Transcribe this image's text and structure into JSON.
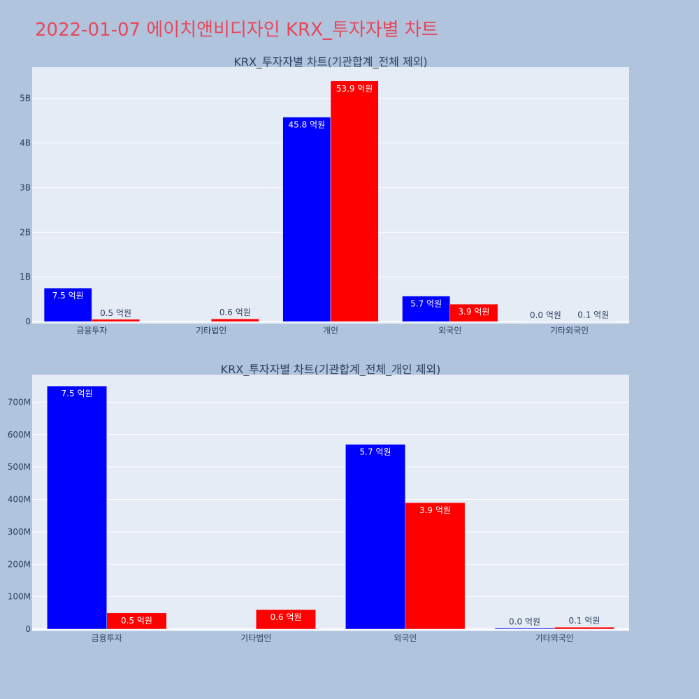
{
  "page": {
    "title": "2022-01-07 에이치앤비디자인 KRX_투자자별 차트"
  },
  "colors": {
    "background": "#b0c4de",
    "plot_bg": "#e5ecf6",
    "grid": "#ffffff",
    "title": "#e8475a",
    "axis_text": "#2a3f5f",
    "series_blue": "#0000ff",
    "series_red": "#ff0000"
  },
  "chart_data": [
    {
      "type": "bar",
      "title": "KRX_투자자별 차트(기관합계_전체 제외)",
      "categories": [
        "금융투자",
        "기타법인",
        "개인",
        "외국인",
        "기타외국인"
      ],
      "series": [
        {
          "color": "#0000ff",
          "values": [
            750000000,
            0,
            4580000000,
            570000000,
            3000000
          ],
          "labels": [
            "7.5 억원",
            "",
            "45.8 억원",
            "5.7 억원",
            "0.0 억원"
          ]
        },
        {
          "color": "#ff0000",
          "values": [
            50000000,
            60000000,
            5390000000,
            390000000,
            6000000
          ],
          "labels": [
            "0.5 억원",
            "0.6 억원",
            "53.9 억원",
            "3.9 억원",
            "0.1 억원"
          ]
        }
      ],
      "yticks": [
        0,
        1000000000,
        2000000000,
        3000000000,
        4000000000,
        5000000000
      ],
      "ytick_labels": [
        "0",
        "1B",
        "2B",
        "3B",
        "4B",
        "5B"
      ],
      "ylim": [
        0,
        5700000000
      ],
      "grid": true,
      "xlabel": "",
      "ylabel": ""
    },
    {
      "type": "bar",
      "title": "KRX_투자자별 차트(기관합계_전체_개인 제외)",
      "categories": [
        "금융투자",
        "기타법인",
        "외국인",
        "기타외국인"
      ],
      "series": [
        {
          "color": "#0000ff",
          "values": [
            750000000,
            0,
            570000000,
            3000000
          ],
          "labels": [
            "7.5 억원",
            "",
            "5.7 억원",
            "0.0 억원"
          ]
        },
        {
          "color": "#ff0000",
          "values": [
            50000000,
            60000000,
            390000000,
            6000000
          ],
          "labels": [
            "0.5 억원",
            "0.6 억원",
            "3.9 억원",
            "0.1 억원"
          ]
        }
      ],
      "yticks": [
        0,
        100000000,
        200000000,
        300000000,
        400000000,
        500000000,
        600000000,
        700000000
      ],
      "ytick_labels": [
        "0",
        "100M",
        "200M",
        "300M",
        "400M",
        "500M",
        "600M",
        "700M"
      ],
      "ylim": [
        0,
        785000000
      ],
      "grid": true,
      "xlabel": "",
      "ylabel": ""
    }
  ]
}
